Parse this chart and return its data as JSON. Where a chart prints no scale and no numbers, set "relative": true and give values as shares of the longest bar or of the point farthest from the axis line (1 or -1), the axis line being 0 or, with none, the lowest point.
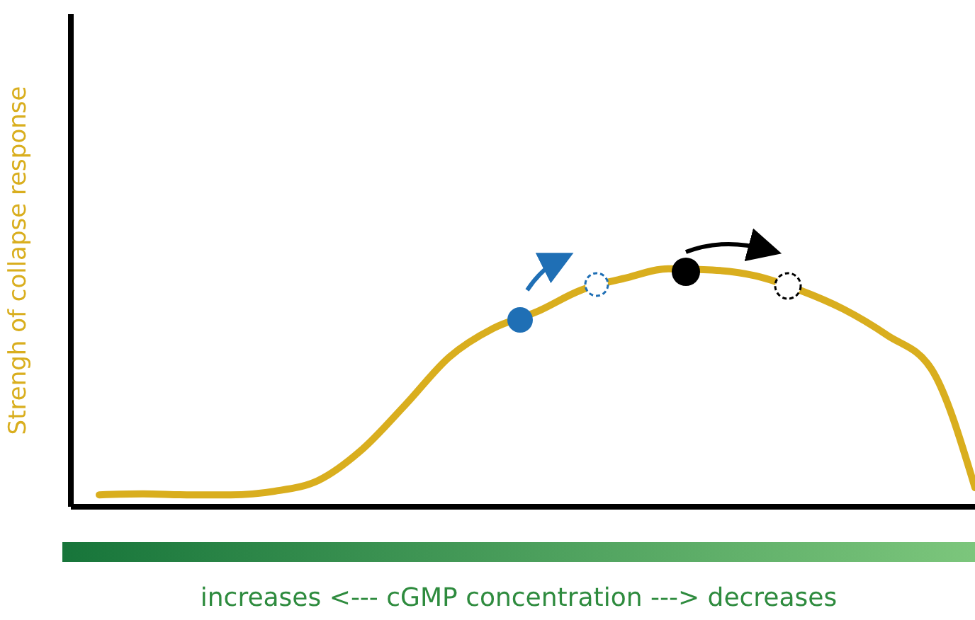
{
  "chart_data": {
    "type": "line",
    "relative": true,
    "xlabel": "increases <--- cGMP concentration ---> decreases",
    "ylabel": "Strengh of collapse response",
    "categories": [
      null,
      null,
      null,
      null,
      null,
      null,
      null,
      null,
      null,
      null,
      null,
      null,
      null,
      null,
      null,
      null,
      null,
      null,
      null,
      null,
      null
    ],
    "series": [
      {
        "color": "#d9ae1e",
        "values": [
          0.05,
          0.054,
          0.05,
          0.05,
          0.065,
          0.11,
          0.24,
          0.43,
          0.63,
          0.75,
          0.82,
          0.91,
          0.96,
          1.0,
          0.995,
          0.97,
          0.91,
          0.83,
          0.72,
          0.58,
          0.08
        ]
      }
    ],
    "marker": "none",
    "line_style": "solid"
  }
}
